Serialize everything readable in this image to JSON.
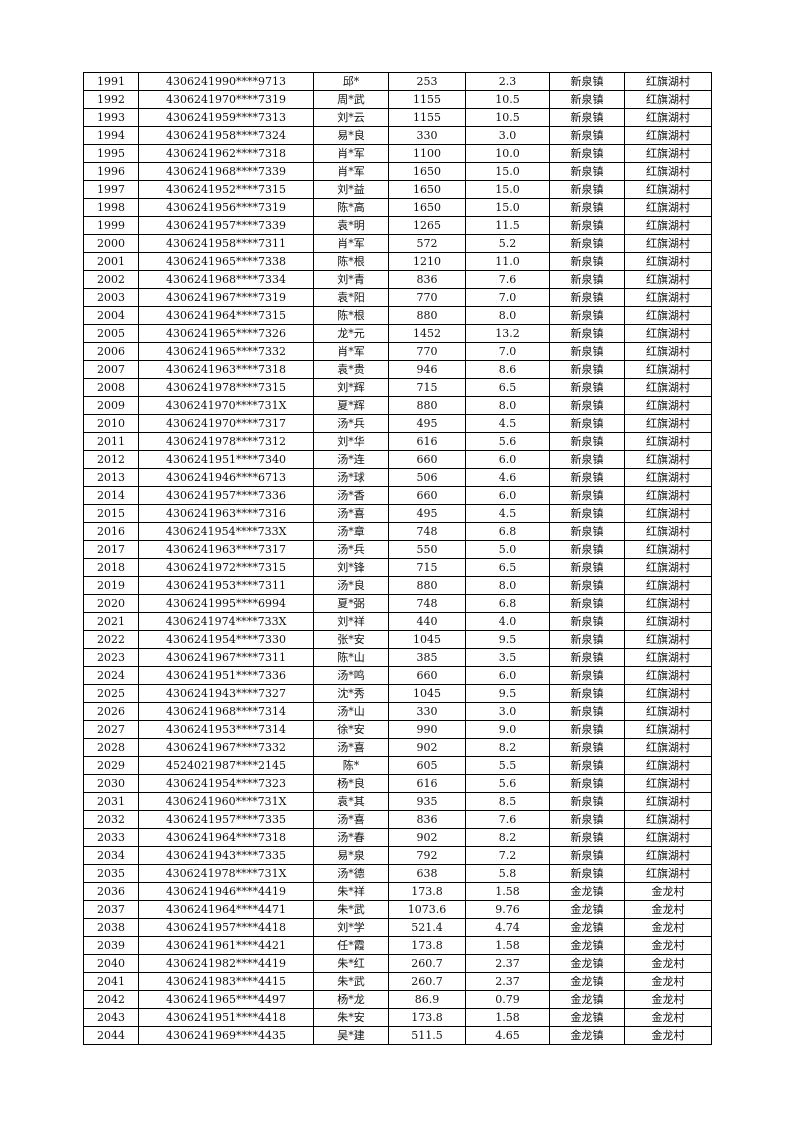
{
  "rows": [
    [
      "1991",
      "4306241990****9713",
      "邱*",
      "253",
      "2.3",
      "新泉镇",
      "红旗湖村"
    ],
    [
      "1992",
      "4306241970****7319",
      "周*武",
      "1155",
      "10.5",
      "新泉镇",
      "红旗湖村"
    ],
    [
      "1993",
      "4306241959****7313",
      "刘*云",
      "1155",
      "10.5",
      "新泉镇",
      "红旗湖村"
    ],
    [
      "1994",
      "4306241958****7324",
      "易*良",
      "330",
      "3.0",
      "新泉镇",
      "红旗湖村"
    ],
    [
      "1995",
      "4306241962****7318",
      "肖*军",
      "1100",
      "10.0",
      "新泉镇",
      "红旗湖村"
    ],
    [
      "1996",
      "4306241968****7339",
      "肖*军",
      "1650",
      "15.0",
      "新泉镇",
      "红旗湖村"
    ],
    [
      "1997",
      "4306241952****7315",
      "刘*益",
      "1650",
      "15.0",
      "新泉镇",
      "红旗湖村"
    ],
    [
      "1998",
      "4306241956****7319",
      "陈*高",
      "1650",
      "15.0",
      "新泉镇",
      "红旗湖村"
    ],
    [
      "1999",
      "4306241957****7339",
      "袁*明",
      "1265",
      "11.5",
      "新泉镇",
      "红旗湖村"
    ],
    [
      "2000",
      "4306241958****7311",
      "肖*军",
      "572",
      "5.2",
      "新泉镇",
      "红旗湖村"
    ],
    [
      "2001",
      "4306241965****7338",
      "陈*根",
      "1210",
      "11.0",
      "新泉镇",
      "红旗湖村"
    ],
    [
      "2002",
      "4306241968****7334",
      "刘*青",
      "836",
      "7.6",
      "新泉镇",
      "红旗湖村"
    ],
    [
      "2003",
      "4306241967****7319",
      "袁*阳",
      "770",
      "7.0",
      "新泉镇",
      "红旗湖村"
    ],
    [
      "2004",
      "4306241964****7315",
      "陈*根",
      "880",
      "8.0",
      "新泉镇",
      "红旗湖村"
    ],
    [
      "2005",
      "4306241965****7326",
      "龙*元",
      "1452",
      "13.2",
      "新泉镇",
      "红旗湖村"
    ],
    [
      "2006",
      "4306241965****7332",
      "肖*军",
      "770",
      "7.0",
      "新泉镇",
      "红旗湖村"
    ],
    [
      "2007",
      "4306241963****7318",
      "袁*贵",
      "946",
      "8.6",
      "新泉镇",
      "红旗湖村"
    ],
    [
      "2008",
      "4306241978****7315",
      "刘*辉",
      "715",
      "6.5",
      "新泉镇",
      "红旗湖村"
    ],
    [
      "2009",
      "4306241970****731X",
      "夏*辉",
      "880",
      "8.0",
      "新泉镇",
      "红旗湖村"
    ],
    [
      "2010",
      "4306241970****7317",
      "汤*兵",
      "495",
      "4.5",
      "新泉镇",
      "红旗湖村"
    ],
    [
      "2011",
      "4306241978****7312",
      "刘*华",
      "616",
      "5.6",
      "新泉镇",
      "红旗湖村"
    ],
    [
      "2012",
      "4306241951****7340",
      "汤*连",
      "660",
      "6.0",
      "新泉镇",
      "红旗湖村"
    ],
    [
      "2013",
      "4306241946****6713",
      "汤*球",
      "506",
      "4.6",
      "新泉镇",
      "红旗湖村"
    ],
    [
      "2014",
      "4306241957****7336",
      "汤*香",
      "660",
      "6.0",
      "新泉镇",
      "红旗湖村"
    ],
    [
      "2015",
      "4306241963****7316",
      "汤*喜",
      "495",
      "4.5",
      "新泉镇",
      "红旗湖村"
    ],
    [
      "2016",
      "4306241954****733X",
      "汤*章",
      "748",
      "6.8",
      "新泉镇",
      "红旗湖村"
    ],
    [
      "2017",
      "4306241963****7317",
      "汤*兵",
      "550",
      "5.0",
      "新泉镇",
      "红旗湖村"
    ],
    [
      "2018",
      "4306241972****7315",
      "刘*锋",
      "715",
      "6.5",
      "新泉镇",
      "红旗湖村"
    ],
    [
      "2019",
      "4306241953****7311",
      "汤*良",
      "880",
      "8.0",
      "新泉镇",
      "红旗湖村"
    ],
    [
      "2020",
      "4306241995****6994",
      "夏*弼",
      "748",
      "6.8",
      "新泉镇",
      "红旗湖村"
    ],
    [
      "2021",
      "4306241974****733X",
      "刘*祥",
      "440",
      "4.0",
      "新泉镇",
      "红旗湖村"
    ],
    [
      "2022",
      "4306241954****7330",
      "张*安",
      "1045",
      "9.5",
      "新泉镇",
      "红旗湖村"
    ],
    [
      "2023",
      "4306241967****7311",
      "陈*山",
      "385",
      "3.5",
      "新泉镇",
      "红旗湖村"
    ],
    [
      "2024",
      "4306241951****7336",
      "汤*鸣",
      "660",
      "6.0",
      "新泉镇",
      "红旗湖村"
    ],
    [
      "2025",
      "4306241943****7327",
      "沈*秀",
      "1045",
      "9.5",
      "新泉镇",
      "红旗湖村"
    ],
    [
      "2026",
      "4306241968****7314",
      "汤*山",
      "330",
      "3.0",
      "新泉镇",
      "红旗湖村"
    ],
    [
      "2027",
      "4306241953****7314",
      "徐*安",
      "990",
      "9.0",
      "新泉镇",
      "红旗湖村"
    ],
    [
      "2028",
      "4306241967****7332",
      "汤*喜",
      "902",
      "8.2",
      "新泉镇",
      "红旗湖村"
    ],
    [
      "2029",
      "4524021987****2145",
      "陈*",
      "605",
      "5.5",
      "新泉镇",
      "红旗湖村"
    ],
    [
      "2030",
      "4306241954****7323",
      "杨*良",
      "616",
      "5.6",
      "新泉镇",
      "红旗湖村"
    ],
    [
      "2031",
      "4306241960****731X",
      "袁*其",
      "935",
      "8.5",
      "新泉镇",
      "红旗湖村"
    ],
    [
      "2032",
      "4306241957****7335",
      "汤*喜",
      "836",
      "7.6",
      "新泉镇",
      "红旗湖村"
    ],
    [
      "2033",
      "4306241964****7318",
      "汤*春",
      "902",
      "8.2",
      "新泉镇",
      "红旗湖村"
    ],
    [
      "2034",
      "4306241943****7335",
      "易*泉",
      "792",
      "7.2",
      "新泉镇",
      "红旗湖村"
    ],
    [
      "2035",
      "4306241978****731X",
      "汤*德",
      "638",
      "5.8",
      "新泉镇",
      "红旗湖村"
    ],
    [
      "2036",
      "4306241946****4419",
      "朱*祥",
      "173.8",
      "1.58",
      "金龙镇",
      "金龙村"
    ],
    [
      "2037",
      "4306241964****4471",
      "朱*武",
      "1073.6",
      "9.76",
      "金龙镇",
      "金龙村"
    ],
    [
      "2038",
      "4306241957****4418",
      "刘*学",
      "521.4",
      "4.74",
      "金龙镇",
      "金龙村"
    ],
    [
      "2039",
      "4306241961****4421",
      "任*霞",
      "173.8",
      "1.58",
      "金龙镇",
      "金龙村"
    ],
    [
      "2040",
      "4306241982****4419",
      "朱*红",
      "260.7",
      "2.37",
      "金龙镇",
      "金龙村"
    ],
    [
      "2041",
      "4306241983****4415",
      "朱*武",
      "260.7",
      "2.37",
      "金龙镇",
      "金龙村"
    ],
    [
      "2042",
      "4306241965****4497",
      "杨*龙",
      "86.9",
      "0.79",
      "金龙镇",
      "金龙村"
    ],
    [
      "2043",
      "4306241951****4418",
      "朱*安",
      "173.8",
      "1.58",
      "金龙镇",
      "金龙村"
    ],
    [
      "2044",
      "4306241969****4435",
      "吴*建",
      "511.5",
      "4.65",
      "金龙镇",
      "金龙村"
    ]
  ]
}
